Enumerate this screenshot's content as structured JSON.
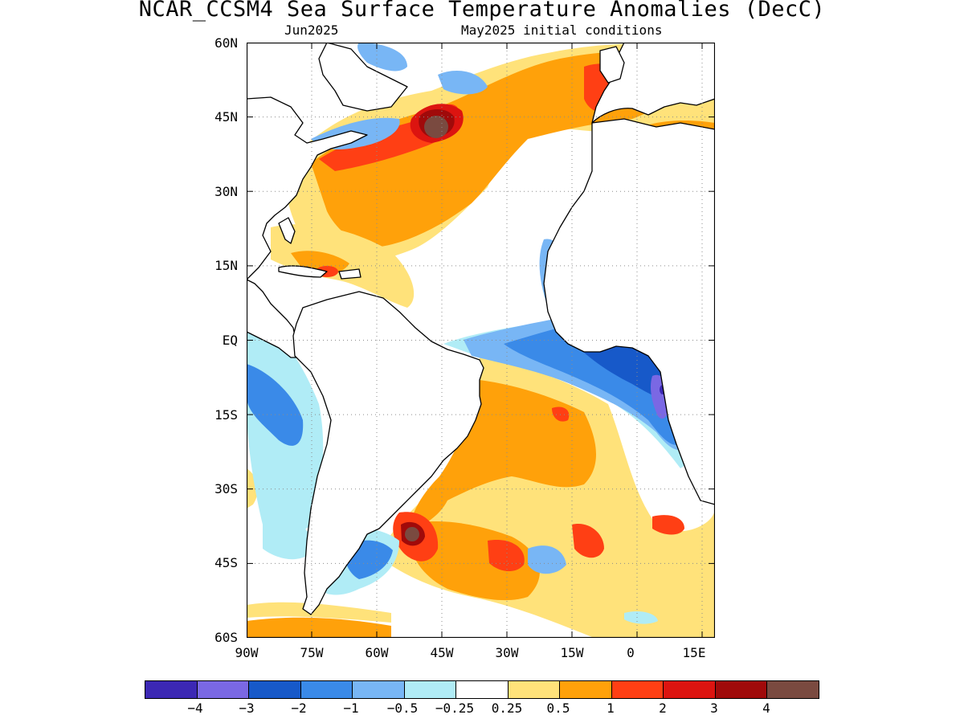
{
  "title": "NCAR_CCSM4 Sea Surface Temperature Anomalies (DecC)",
  "subtitle_left": "Jun2025",
  "subtitle_right": "May2025 initial conditions",
  "map": {
    "lat_labels": [
      "60N",
      "45N",
      "30N",
      "15N",
      "EQ",
      "15S",
      "30S",
      "45S",
      "60S"
    ],
    "lon_labels": [
      "90W",
      "75W",
      "60W",
      "45W",
      "30W",
      "15W",
      "0",
      "15E"
    ],
    "lat_range": [
      -60,
      60
    ],
    "lon_range": [
      -90,
      18
    ],
    "grid": "dotted",
    "land_color": "#ffffff",
    "coastline_color": "#000000",
    "anomaly_regions": [
      {
        "name": "NW Atlantic warm core",
        "level": "5+"
      },
      {
        "name": "SW Atlantic warm core",
        "level": "5+"
      },
      {
        "name": "Tropical South Atlantic cold tongue",
        "level": "-1 to -3"
      },
      {
        "name": "Gulf of Maine cold",
        "level": "-0.5 to -1"
      }
    ]
  },
  "colorbar": {
    "colors": [
      "#3c28b4",
      "#7a68e4",
      "#1759c9",
      "#3a8ae8",
      "#78b6f5",
      "#b0ecf6",
      "#ffffff",
      "#ffe27a",
      "#ffa10a",
      "#ff3f14",
      "#dc1410",
      "#a00a0a",
      "#7a4a40"
    ],
    "labels": [
      "−4",
      "−3",
      "−2",
      "−1",
      "−0.5",
      "−0.25",
      "0.25",
      "0.5",
      "1",
      "2",
      "3",
      "4"
    ]
  }
}
